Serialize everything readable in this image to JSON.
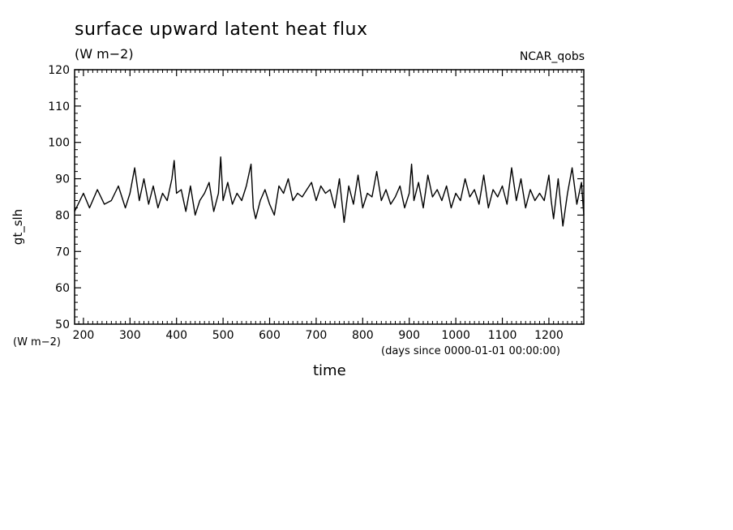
{
  "title": "surface upward latent heat flux",
  "units": "(W m−2)",
  "source": "NCAR_qobs",
  "y_axis_units": "(W m−2)",
  "x_axis_units": "(days since 0000-01-01 00:00:00)",
  "chart_data": {
    "type": "line",
    "title": "surface upward latent heat flux",
    "xlabel": "time",
    "ylabel": "gt_slh",
    "xlim": [
      181,
      1275
    ],
    "ylim": [
      50,
      120
    ],
    "grid": false,
    "xticks": [
      200,
      300,
      400,
      500,
      600,
      700,
      800,
      900,
      1000,
      1100,
      1200
    ],
    "yticks": [
      50,
      60,
      70,
      80,
      90,
      100,
      110,
      120
    ],
    "series": [
      {
        "color": "#000000",
        "x": [
          181,
          200,
          213,
          230,
          245,
          260,
          275,
          290,
          300,
          310,
          320,
          330,
          340,
          350,
          360,
          370,
          380,
          390,
          395,
          400,
          410,
          420,
          430,
          440,
          450,
          460,
          470,
          480,
          490,
          495,
          500,
          510,
          520,
          530,
          540,
          550,
          560,
          565,
          570,
          580,
          590,
          600,
          610,
          620,
          630,
          640,
          650,
          660,
          670,
          680,
          690,
          700,
          710,
          720,
          730,
          740,
          750,
          760,
          770,
          780,
          790,
          800,
          810,
          820,
          830,
          840,
          850,
          860,
          870,
          880,
          890,
          900,
          905,
          910,
          920,
          930,
          940,
          950,
          960,
          970,
          980,
          990,
          1000,
          1010,
          1020,
          1030,
          1040,
          1050,
          1060,
          1070,
          1080,
          1090,
          1100,
          1110,
          1120,
          1130,
          1140,
          1150,
          1160,
          1170,
          1180,
          1190,
          1200,
          1205,
          1210,
          1220,
          1230,
          1240,
          1250,
          1260,
          1270,
          1275
        ],
        "values": [
          81,
          86,
          82,
          87,
          83,
          84,
          88,
          82,
          86,
          93,
          84,
          90,
          83,
          88,
          82,
          86,
          84,
          90,
          95,
          86,
          87,
          81,
          88,
          80,
          84,
          86,
          89,
          81,
          86,
          96,
          84,
          89,
          83,
          86,
          84,
          88,
          94,
          82,
          79,
          84,
          87,
          83,
          80,
          88,
          86,
          90,
          84,
          86,
          85,
          87,
          89,
          84,
          88,
          86,
          87,
          82,
          90,
          78,
          88,
          83,
          91,
          82,
          86,
          85,
          92,
          84,
          87,
          83,
          85,
          88,
          82,
          86,
          94,
          84,
          89,
          82,
          91,
          85,
          87,
          84,
          88,
          82,
          86,
          84,
          90,
          85,
          87,
          83,
          91,
          82,
          87,
          85,
          88,
          83,
          93,
          84,
          90,
          82,
          87,
          84,
          86,
          84,
          91,
          84,
          79,
          90,
          77,
          86,
          93,
          83,
          89,
          80
        ]
      }
    ]
  }
}
